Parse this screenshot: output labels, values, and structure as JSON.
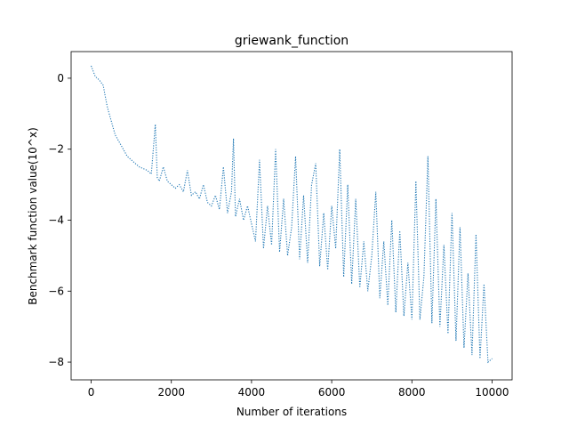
{
  "chart_data": {
    "type": "line",
    "title": "griewank_function",
    "xlabel": "Number of iterations",
    "ylabel": "Benchmark function value(10^x)",
    "xlim": [
      -500,
      10500
    ],
    "ylim": [
      -8.5,
      0.75
    ],
    "xticks": [
      0,
      2000,
      4000,
      6000,
      8000,
      10000
    ],
    "xtick_labels": [
      "0",
      "2000",
      "4000",
      "6000",
      "8000",
      "10000"
    ],
    "yticks": [
      0,
      -2,
      -4,
      -6,
      -8
    ],
    "ytick_labels": [
      "0",
      "−2",
      "−4",
      "−6",
      "−8"
    ],
    "grid": false,
    "legend": null,
    "series": [
      {
        "line_style": "dotted",
        "color": "#1f77b4",
        "x": [
          0,
          100,
          200,
          300,
          350,
          400,
          450,
          500,
          550,
          600,
          650,
          700,
          750,
          800,
          900,
          1000,
          1100,
          1200,
          1300,
          1400,
          1500,
          1600,
          1650,
          1700,
          1800,
          1900,
          2000,
          2100,
          2200,
          2300,
          2400,
          2500,
          2600,
          2700,
          2800,
          2900,
          3000,
          3100,
          3200,
          3300,
          3400,
          3500,
          3550,
          3600,
          3700,
          3800,
          3900,
          4000,
          4100,
          4200,
          4300,
          4400,
          4500,
          4600,
          4700,
          4800,
          4900,
          5000,
          5100,
          5200,
          5300,
          5400,
          5500,
          5600,
          5700,
          5800,
          5900,
          6000,
          6100,
          6200,
          6300,
          6400,
          6500,
          6600,
          6700,
          6800,
          6900,
          7000,
          7100,
          7200,
          7300,
          7400,
          7500,
          7600,
          7700,
          7800,
          7900,
          8000,
          8100,
          8200,
          8300,
          8400,
          8500,
          8600,
          8700,
          8800,
          8900,
          9000,
          9100,
          9200,
          9300,
          9400,
          9500,
          9600,
          9700,
          9800,
          9900,
          10000
        ],
        "y": [
          0.35,
          0.05,
          -0.05,
          -0.2,
          -0.5,
          -0.8,
          -1.0,
          -1.2,
          -1.4,
          -1.6,
          -1.7,
          -1.8,
          -1.9,
          -2.0,
          -2.2,
          -2.3,
          -2.4,
          -2.5,
          -2.55,
          -2.6,
          -2.7,
          -1.3,
          -2.8,
          -2.9,
          -2.5,
          -2.9,
          -3.0,
          -3.1,
          -3.0,
          -3.2,
          -2.6,
          -3.3,
          -3.2,
          -3.4,
          -3.0,
          -3.5,
          -3.6,
          -3.3,
          -3.7,
          -2.5,
          -3.8,
          -3.2,
          -1.7,
          -3.9,
          -3.4,
          -4.0,
          -3.6,
          -4.1,
          -4.6,
          -2.3,
          -4.8,
          -3.6,
          -4.7,
          -2.0,
          -4.9,
          -3.4,
          -5.0,
          -4.2,
          -2.2,
          -5.1,
          -3.3,
          -5.2,
          -3.0,
          -2.4,
          -5.3,
          -3.8,
          -5.4,
          -3.6,
          -4.8,
          -2.0,
          -5.6,
          -3.0,
          -5.8,
          -3.4,
          -5.9,
          -4.6,
          -6.0,
          -5.0,
          -3.2,
          -6.2,
          -4.6,
          -6.4,
          -4.0,
          -6.6,
          -4.3,
          -6.7,
          -5.2,
          -6.8,
          -2.9,
          -6.8,
          -5.6,
          -2.2,
          -6.9,
          -3.4,
          -7.0,
          -4.7,
          -7.2,
          -3.8,
          -7.4,
          -4.2,
          -7.6,
          -5.5,
          -7.8,
          -4.4,
          -7.9,
          -5.8,
          -8.0,
          -7.9
        ]
      }
    ]
  }
}
